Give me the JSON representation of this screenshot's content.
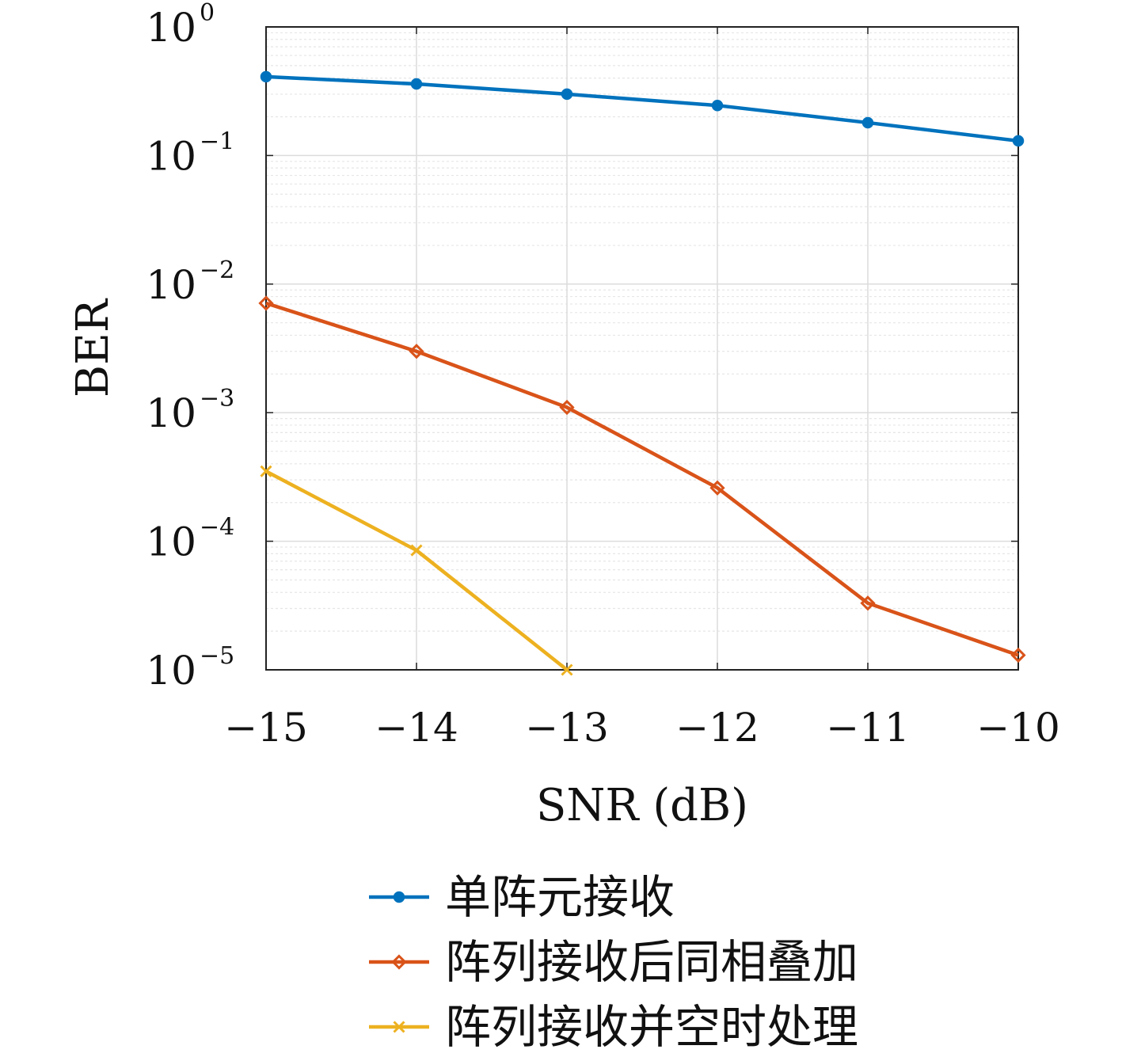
{
  "chart_data": {
    "type": "line",
    "xlabel": "SNR (dB)",
    "ylabel": "BER",
    "yscale": "log",
    "xlim": [
      -15,
      -10
    ],
    "ylim": [
      1e-05,
      1
    ],
    "grid": true,
    "minor_grid": true,
    "legend_position": "bottom, below plot",
    "x_ticks": [
      {
        "value": -15,
        "label": "−15"
      },
      {
        "value": -14,
        "label": "−14"
      },
      {
        "value": -13,
        "label": "−13"
      },
      {
        "value": -12,
        "label": "−12"
      },
      {
        "value": -11,
        "label": "−11"
      },
      {
        "value": -10,
        "label": "−10"
      }
    ],
    "y_ticks": [
      {
        "value": 1,
        "base": "10",
        "exp": "0"
      },
      {
        "value": 0.1,
        "base": "10",
        "exp": "−1"
      },
      {
        "value": 0.01,
        "base": "10",
        "exp": "−2"
      },
      {
        "value": 0.001,
        "base": "10",
        "exp": "−3"
      },
      {
        "value": 0.0001,
        "base": "10",
        "exp": "−4"
      },
      {
        "value": 1e-05,
        "base": "10",
        "exp": "−5"
      }
    ],
    "series": [
      {
        "name": "单阵元接收",
        "color": "#0072BD",
        "marker": "circle",
        "x": [
          -15,
          -14,
          -13,
          -12,
          -11,
          -10
        ],
        "y": [
          0.41,
          0.36,
          0.3,
          0.245,
          0.18,
          0.13
        ]
      },
      {
        "name": "阵列接收后同相叠加",
        "color": "#D95319",
        "marker": "diamond",
        "x": [
          -15,
          -14,
          -13,
          -12,
          -11,
          -10
        ],
        "y": [
          0.0071,
          0.003,
          0.0011,
          0.00026,
          3.3e-05,
          1.3e-05
        ]
      },
      {
        "name": "阵列接收并空时处理",
        "color": "#EDB120",
        "marker": "x",
        "x": [
          -15,
          -14,
          -13
        ],
        "y": [
          0.00035,
          8.5e-05,
          1e-05
        ]
      }
    ]
  }
}
